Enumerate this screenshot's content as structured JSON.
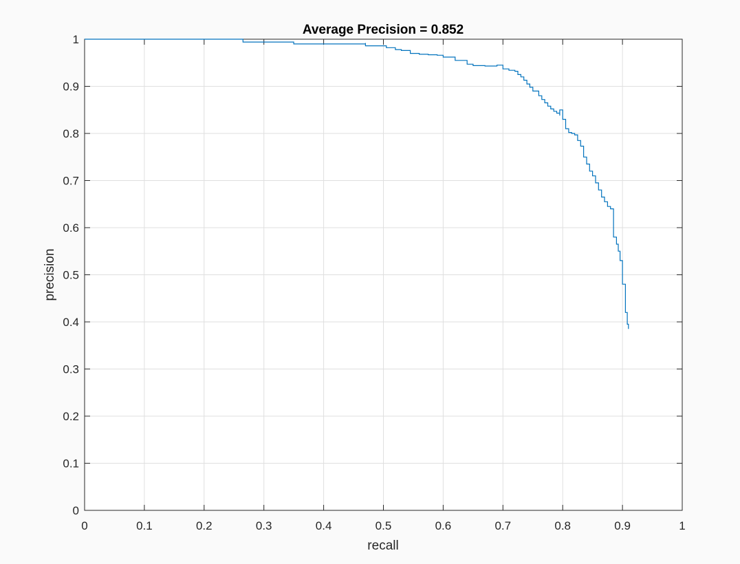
{
  "chart_data": {
    "type": "line",
    "title": "Average Precision = 0.852",
    "xlabel": "recall",
    "ylabel": "precision",
    "xlim": [
      0,
      1
    ],
    "ylim": [
      0,
      1
    ],
    "grid": true,
    "xticks": [
      "0",
      "0.1",
      "0.2",
      "0.3",
      "0.4",
      "0.5",
      "0.6",
      "0.7",
      "0.8",
      "0.9",
      "1"
    ],
    "yticks": [
      "0",
      "0.1",
      "0.2",
      "0.3",
      "0.4",
      "0.5",
      "0.6",
      "0.7",
      "0.8",
      "0.9",
      "1"
    ],
    "line_color": "#0072bd",
    "series": [
      {
        "x": [
          0,
          0.265,
          0.265,
          0.35,
          0.35,
          0.47,
          0.47,
          0.505,
          0.505,
          0.52,
          0.53,
          0.545,
          0.545,
          0.56,
          0.575,
          0.59,
          0.6,
          0.62,
          0.62,
          0.64,
          0.65,
          0.67,
          0.69,
          0.7,
          0.71,
          0.72,
          0.725,
          0.73,
          0.735,
          0.74,
          0.745,
          0.75,
          0.76,
          0.765,
          0.77,
          0.775,
          0.78,
          0.785,
          0.79,
          0.795,
          0.795,
          0.8,
          0.805,
          0.81,
          0.815,
          0.82,
          0.825,
          0.83,
          0.835,
          0.835,
          0.84,
          0.845,
          0.85,
          0.855,
          0.86,
          0.86,
          0.865,
          0.87,
          0.875,
          0.88,
          0.885,
          0.885,
          0.89,
          0.893,
          0.896,
          0.9,
          0.9,
          0.905,
          0.905,
          0.908,
          0.91
        ],
        "y": [
          1.0,
          1.0,
          0.994,
          0.994,
          0.99,
          0.992,
          0.986,
          0.986,
          0.982,
          0.978,
          0.976,
          0.974,
          0.97,
          0.968,
          0.967,
          0.966,
          0.962,
          0.961,
          0.955,
          0.947,
          0.944,
          0.943,
          0.945,
          0.937,
          0.934,
          0.932,
          0.925,
          0.92,
          0.913,
          0.905,
          0.898,
          0.89,
          0.88,
          0.872,
          0.865,
          0.858,
          0.852,
          0.847,
          0.843,
          0.838,
          0.85,
          0.83,
          0.81,
          0.802,
          0.8,
          0.797,
          0.785,
          0.773,
          0.765,
          0.75,
          0.735,
          0.72,
          0.71,
          0.695,
          0.685,
          0.68,
          0.665,
          0.655,
          0.645,
          0.64,
          0.62,
          0.58,
          0.565,
          0.55,
          0.53,
          0.505,
          0.48,
          0.455,
          0.42,
          0.395,
          0.385
        ]
      }
    ]
  }
}
